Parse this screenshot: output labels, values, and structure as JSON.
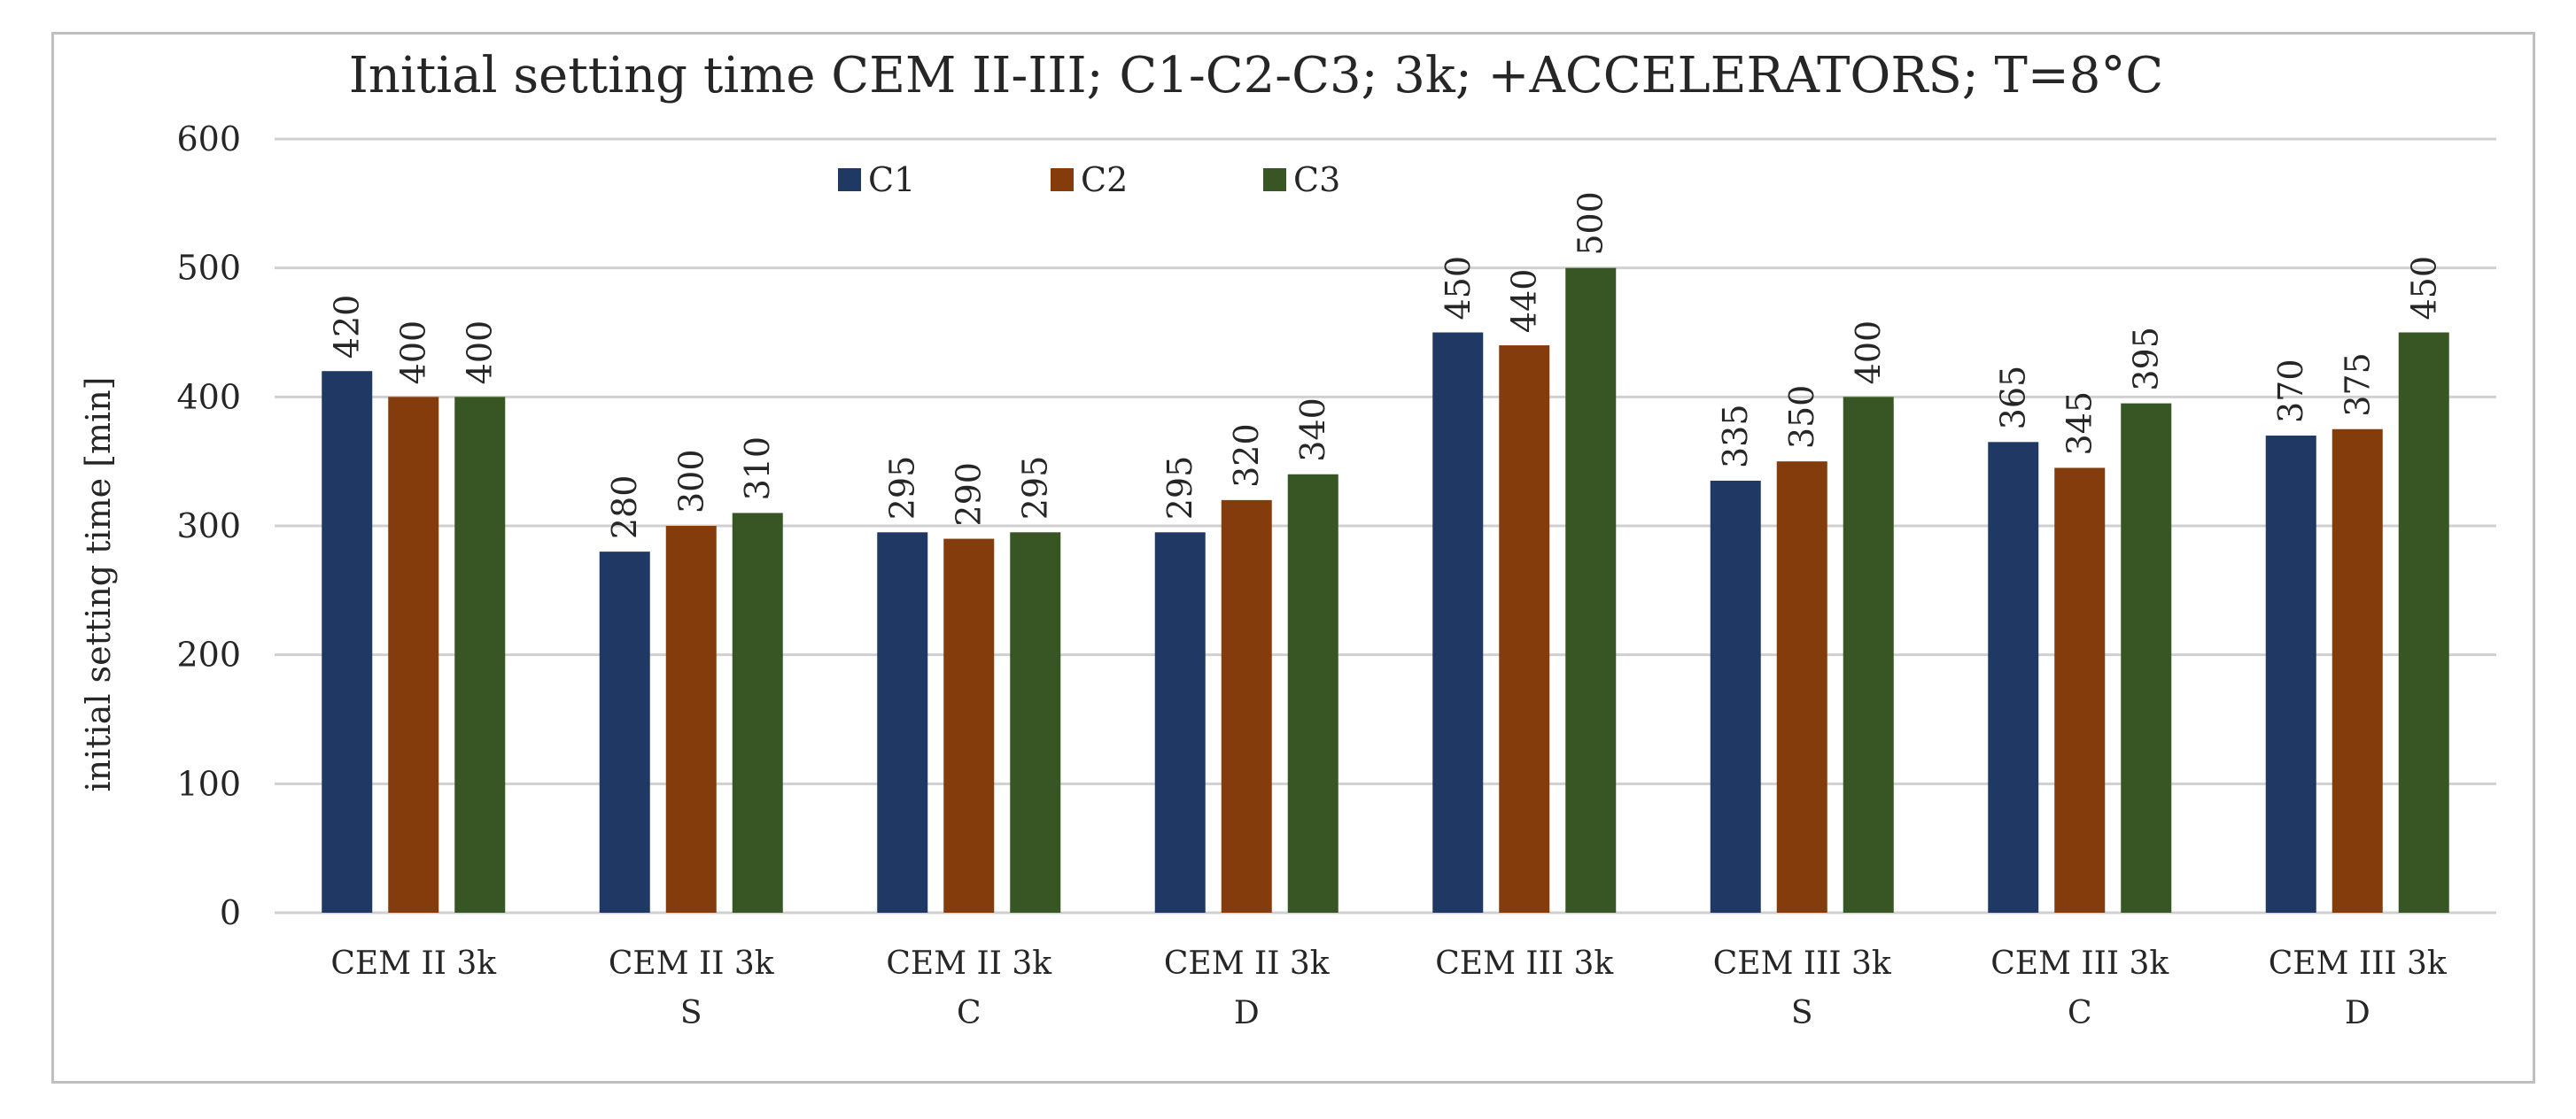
{
  "chart_data": {
    "type": "bar",
    "title": "Initial setting time CEM II-III; C1-C2-C3; 3k; +ACCELERATORS; T=8°C",
    "xlabel": "",
    "ylabel": "initial setting time [min]",
    "ylim": [
      0,
      600
    ],
    "yticks": [
      0,
      100,
      200,
      300,
      400,
      500,
      600
    ],
    "grid": true,
    "legend_position": "top-center",
    "categories": [
      [
        "CEM II 3k"
      ],
      [
        "CEM II 3k",
        "S"
      ],
      [
        "CEM II 3k",
        "C"
      ],
      [
        "CEM II 3k",
        "D"
      ],
      [
        "CEM III 3k"
      ],
      [
        "CEM III 3k",
        "S"
      ],
      [
        "CEM III 3k",
        "C"
      ],
      [
        "CEM III 3k",
        "D"
      ]
    ],
    "series": [
      {
        "name": "C1",
        "color": "#203864",
        "values": [
          420,
          280,
          295,
          295,
          450,
          335,
          365,
          370
        ]
      },
      {
        "name": "C2",
        "color": "#843C0C",
        "values": [
          400,
          300,
          290,
          320,
          440,
          350,
          345,
          375
        ]
      },
      {
        "name": "C3",
        "color": "#375623",
        "values": [
          400,
          310,
          295,
          340,
          500,
          400,
          395,
          450
        ]
      }
    ]
  }
}
